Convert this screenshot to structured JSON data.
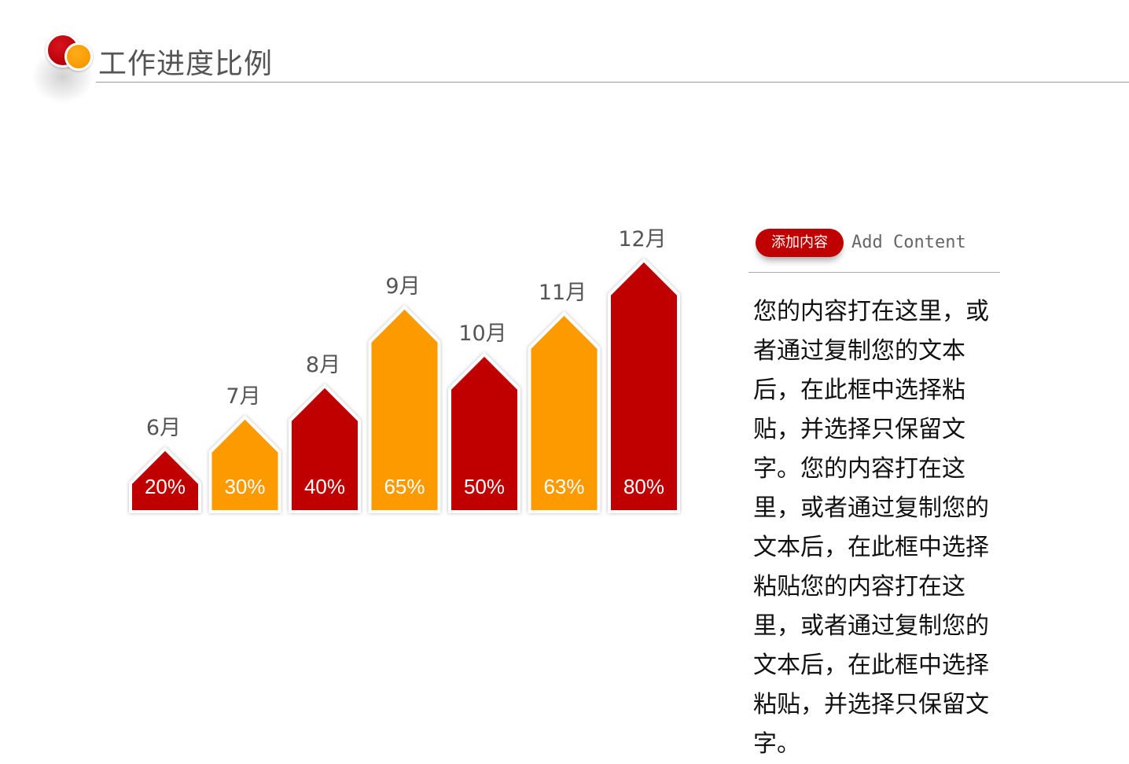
{
  "header": {
    "title": "工作进度比例"
  },
  "chart_data": {
    "type": "bar",
    "categories": [
      "6月",
      "7月",
      "8月",
      "9月",
      "10月",
      "11月",
      "12月"
    ],
    "values": [
      20,
      30,
      40,
      65,
      50,
      63,
      80
    ],
    "value_labels": [
      "20%",
      "30%",
      "40%",
      "65%",
      "50%",
      "63%",
      "80%"
    ],
    "colors": [
      "#c00000",
      "#fc9a00",
      "#c00000",
      "#fc9a00",
      "#c00000",
      "#fc9a00",
      "#c00000"
    ],
    "ylim": [
      0,
      100
    ],
    "unit": "%",
    "grid": false,
    "legend": "none"
  },
  "side_panel": {
    "badge_label": "添加内容",
    "badge_subtitle": "Add Content",
    "body_text": "您的内容打在这里，或者通过复制您的文本后，在此框中选择粘贴，并选择只保留文字。您的内容打在这里，或者通过复制您的文本后，在此框中选择粘贴您的内容打在这里，或者通过复制您的文本后，在此框中选择粘贴，并选择只保留文字。"
  },
  "colors": {
    "accent_red": "#c00000",
    "accent_orange": "#fc9a00",
    "text_gray": "#555555"
  }
}
